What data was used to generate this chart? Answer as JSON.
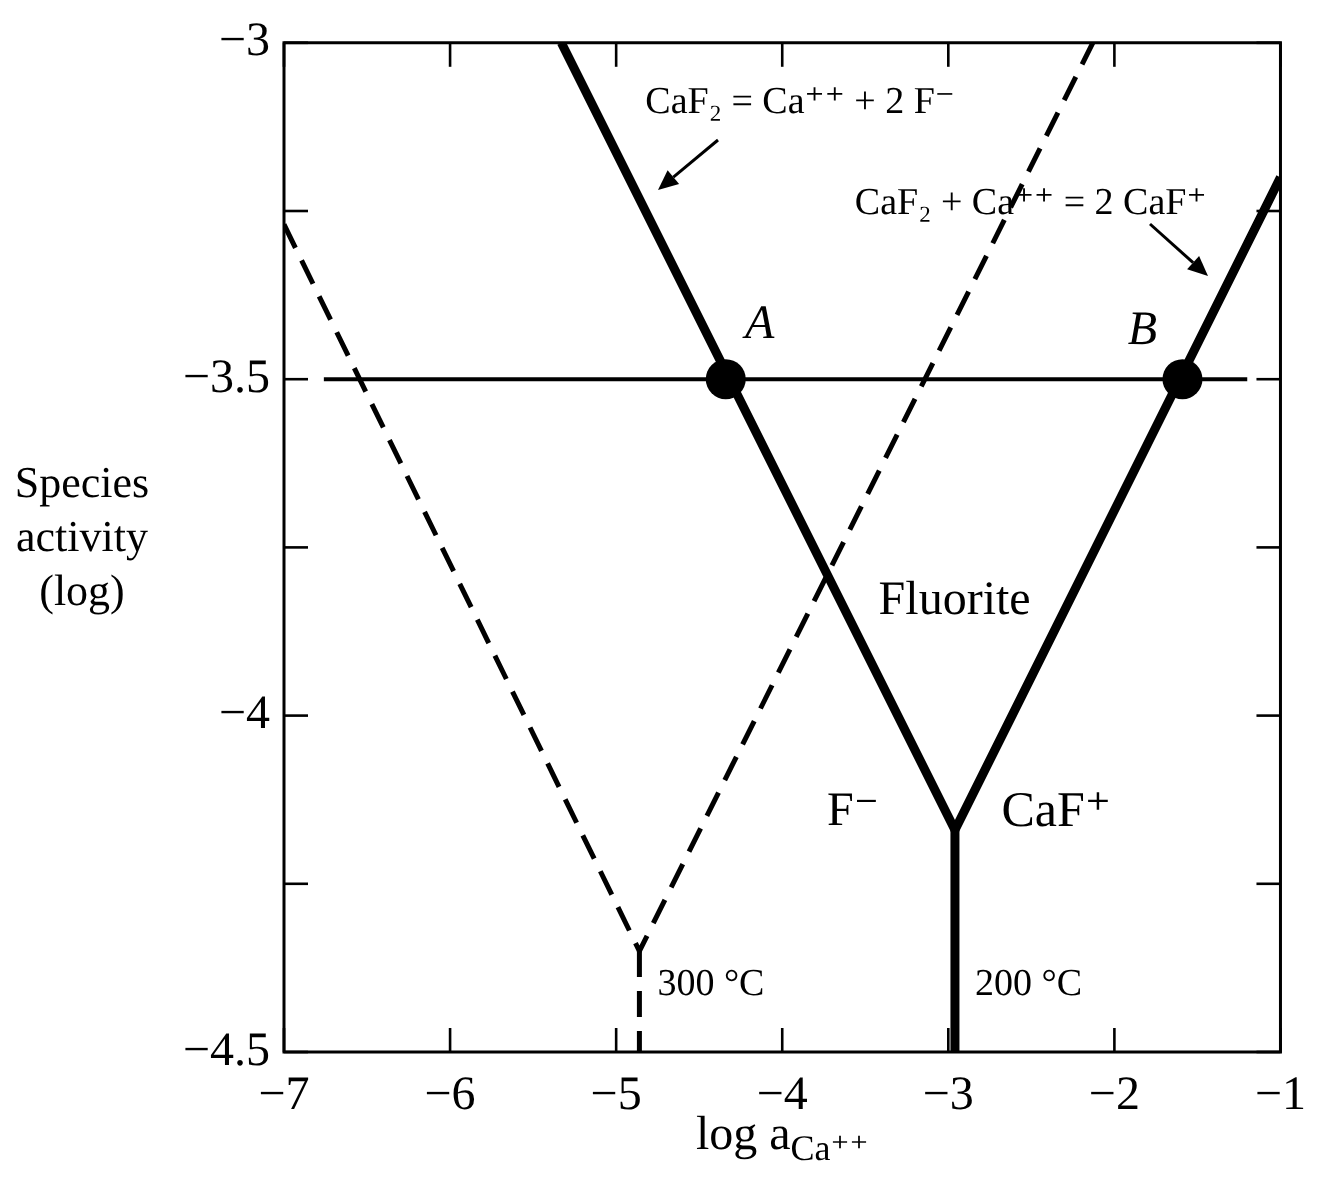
{
  "chart_data": {
    "type": "line",
    "xlabel": "log a$_{Ca⁺⁺}$",
    "ylabel": "Species activity (log)",
    "xlim": [
      -7,
      -1
    ],
    "ylim": [
      -4.5,
      -3
    ],
    "xticks": [
      -7,
      -6,
      -5,
      -4,
      -3,
      -2,
      -1
    ],
    "yticks": [
      -4.5,
      {
        "value": -4.25,
        "label": null
      },
      -4,
      {
        "value": -3.75,
        "label": null
      },
      -3.5,
      {
        "value": -3.25,
        "label": null
      },
      -3
    ],
    "grid": false,
    "legend": false,
    "series": [
      {
        "color": "#000000",
        "line_style": "solid",
        "marker": "none",
        "x": [
          -5.33,
          -2.96,
          -1
        ],
        "values": [
          -3,
          -4.17,
          -3.2
        ]
      },
      {
        "color": "#000000",
        "line_style": "solid",
        "marker": "none",
        "x": [
          -2.96,
          -2.96
        ],
        "values": [
          -4.17,
          -4.5
        ]
      },
      {
        "color": "#000000",
        "line_style": "dashed",
        "marker": "none",
        "x": [
          -7,
          -4.86,
          -2.13
        ],
        "values": [
          -3.27,
          -4.35,
          -3
        ]
      },
      {
        "color": "#000000",
        "line_style": "dashed",
        "marker": "none",
        "x": [
          -4.86,
          -4.86
        ],
        "values": [
          -4.35,
          -4.5
        ]
      },
      {
        "color": "#000000",
        "line_style": "solid",
        "marker": "none",
        "x": [
          -6.76,
          -1.2
        ],
        "values": [
          -3.5,
          -3.5
        ]
      },
      {
        "type": "scatter",
        "color": "#000000",
        "marker": "circle",
        "x": [
          -4.34,
          -1.59
        ],
        "values": [
          -3.5,
          -3.5
        ]
      }
    ],
    "annotations": [
      {
        "text": "CaF₂ = Ca⁺⁺ + 2 F⁻",
        "x": -4.88,
        "y": -3.22
      },
      {
        "text": "CaF₂ + Ca⁺⁺ = 2 CaF⁺",
        "x": -1.3,
        "y": -3.35
      },
      {
        "text": "A",
        "x": -4.34,
        "y": -3.5
      },
      {
        "text": "B",
        "x": -1.59,
        "y": -3.5
      },
      "Fluorite",
      "F⁻",
      "CaF⁺",
      {
        "text": "300 °C",
        "x": -4.86,
        "y": -4.4
      },
      {
        "text": "200 °C",
        "x": -2.96,
        "y": -4.4
      }
    ]
  }
}
